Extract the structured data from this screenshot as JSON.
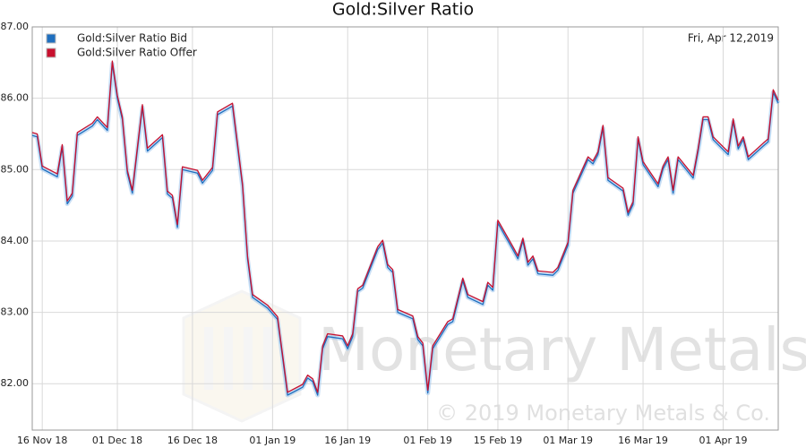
{
  "chart_data": {
    "type": "line",
    "title": "Gold:Silver Ratio",
    "annotation": "Fri, Apr 12,2019",
    "watermark": "Monetary Metals",
    "copyright": "© 2019 Monetary Metals & Co.",
    "x": [
      "2018-11-14",
      "2018-11-15",
      "2018-11-16",
      "2018-11-19",
      "2018-11-20",
      "2018-11-21",
      "2018-11-22",
      "2018-11-23",
      "2018-11-26",
      "2018-11-27",
      "2018-11-29",
      "2018-11-30",
      "2018-12-01",
      "2018-12-02",
      "2018-12-03",
      "2018-12-04",
      "2018-12-06",
      "2018-12-07",
      "2018-12-10",
      "2018-12-11",
      "2018-12-12",
      "2018-12-13",
      "2018-12-14",
      "2018-12-17",
      "2018-12-18",
      "2018-12-20",
      "2018-12-21",
      "2018-12-24",
      "2018-12-26",
      "2018-12-27",
      "2018-12-28",
      "2018-12-31",
      "2019-01-02",
      "2019-01-04",
      "2019-01-07",
      "2019-01-08",
      "2019-01-09",
      "2019-01-10",
      "2019-01-11",
      "2019-01-12",
      "2019-01-15",
      "2019-01-16",
      "2019-01-17",
      "2019-01-18",
      "2019-01-19",
      "2019-01-22",
      "2019-01-23",
      "2019-01-24",
      "2019-01-25",
      "2019-01-26",
      "2019-01-29",
      "2019-01-30",
      "2019-01-31",
      "2019-02-01",
      "2019-02-02",
      "2019-02-05",
      "2019-02-06",
      "2019-02-08",
      "2019-02-09",
      "2019-02-12",
      "2019-02-13",
      "2019-02-14",
      "2019-02-15",
      "2019-02-18",
      "2019-02-19",
      "2019-02-20",
      "2019-02-21",
      "2019-02-22",
      "2019-02-23",
      "2019-02-26",
      "2019-02-27",
      "2019-03-01",
      "2019-03-02",
      "2019-03-05",
      "2019-03-06",
      "2019-03-07",
      "2019-03-08",
      "2019-03-09",
      "2019-03-12",
      "2019-03-13",
      "2019-03-14",
      "2019-03-15",
      "2019-03-16",
      "2019-03-19",
      "2019-03-20",
      "2019-03-21",
      "2019-03-22",
      "2019-03-23",
      "2019-03-26",
      "2019-03-27",
      "2019-03-28",
      "2019-03-29",
      "2019-03-30",
      "2019-04-02",
      "2019-04-03",
      "2019-04-04",
      "2019-04-05",
      "2019-04-06",
      "2019-04-09",
      "2019-04-10",
      "2019-04-11",
      "2019-04-12"
    ],
    "series": [
      {
        "name": "Gold:Silver Ratio Bid",
        "color": "#1f6fbf",
        "values": [
          85.48,
          85.46,
          85.01,
          84.9,
          85.31,
          84.52,
          84.63,
          85.48,
          85.61,
          85.7,
          85.55,
          86.48,
          86.0,
          85.7,
          84.95,
          84.67,
          85.87,
          85.26,
          85.45,
          84.66,
          84.6,
          84.19,
          85.0,
          84.95,
          84.81,
          84.99,
          85.77,
          85.89,
          84.76,
          83.75,
          83.21,
          83.06,
          82.9,
          81.84,
          81.95,
          82.08,
          82.03,
          81.84,
          82.49,
          82.66,
          82.63,
          82.49,
          82.66,
          83.29,
          83.34,
          83.88,
          83.97,
          83.63,
          83.56,
          83.0,
          82.91,
          82.62,
          82.53,
          81.87,
          82.49,
          82.83,
          82.87,
          83.44,
          83.21,
          83.11,
          83.38,
          83.31,
          84.25,
          83.88,
          83.75,
          84.0,
          83.66,
          83.75,
          83.54,
          83.52,
          83.59,
          83.94,
          84.67,
          85.14,
          85.08,
          85.21,
          85.58,
          84.85,
          84.7,
          84.36,
          84.51,
          85.42,
          85.07,
          84.76,
          85.01,
          85.14,
          84.67,
          85.14,
          84.88,
          85.26,
          85.7,
          85.7,
          85.42,
          85.21,
          85.67,
          85.29,
          85.42,
          85.14,
          85.33,
          85.39,
          86.08,
          85.93
        ]
      },
      {
        "name": "Gold:Silver Ratio Offer",
        "color": "#c8102e",
        "values": [
          85.52,
          85.5,
          85.05,
          84.94,
          85.35,
          84.56,
          84.67,
          85.52,
          85.65,
          85.74,
          85.59,
          86.52,
          86.04,
          85.74,
          84.99,
          84.71,
          85.91,
          85.3,
          85.49,
          84.7,
          84.64,
          84.23,
          85.04,
          84.99,
          84.85,
          85.03,
          85.81,
          85.93,
          84.8,
          83.79,
          83.25,
          83.1,
          82.94,
          81.88,
          81.99,
          82.12,
          82.07,
          81.88,
          82.53,
          82.7,
          82.67,
          82.53,
          82.7,
          83.33,
          83.38,
          83.92,
          84.01,
          83.67,
          83.6,
          83.04,
          82.95,
          82.66,
          82.57,
          81.91,
          82.53,
          82.87,
          82.91,
          83.48,
          83.25,
          83.15,
          83.42,
          83.35,
          84.29,
          83.92,
          83.79,
          84.04,
          83.7,
          83.79,
          83.58,
          83.56,
          83.63,
          83.98,
          84.71,
          85.18,
          85.12,
          85.25,
          85.62,
          84.89,
          84.74,
          84.4,
          84.55,
          85.46,
          85.11,
          84.8,
          85.05,
          85.18,
          84.71,
          85.18,
          84.92,
          85.3,
          85.74,
          85.74,
          85.46,
          85.25,
          85.71,
          85.33,
          85.46,
          85.18,
          85.37,
          85.43,
          86.12,
          85.97
        ]
      }
    ],
    "xlim": [
      "2018-11-14",
      "2019-04-12"
    ],
    "xticks": [
      {
        "value": "2018-11-16",
        "label": "16 Nov 18"
      },
      {
        "value": "2018-12-01",
        "label": "01 Dec 18"
      },
      {
        "value": "2018-12-16",
        "label": "16 Dec 18"
      },
      {
        "value": "2019-01-01",
        "label": "01 Jan 19"
      },
      {
        "value": "2019-01-16",
        "label": "16 Jan 19"
      },
      {
        "value": "2019-02-01",
        "label": "01 Feb 19"
      },
      {
        "value": "2019-02-15",
        "label": "15 Feb 19"
      },
      {
        "value": "2019-03-01",
        "label": "01 Mar 19"
      },
      {
        "value": "2019-03-16",
        "label": "16 Mar 19"
      },
      {
        "value": "2019-04-01",
        "label": "01 Apr 19"
      }
    ],
    "ylim": [
      81.35,
      87.0
    ],
    "yticks": [
      {
        "value": 82,
        "label": "82.00"
      },
      {
        "value": 83,
        "label": "83.00"
      },
      {
        "value": 84,
        "label": "84.00"
      },
      {
        "value": 85,
        "label": "85.00"
      },
      {
        "value": 86,
        "label": "86.00"
      },
      {
        "value": 87,
        "label": "87.00"
      }
    ],
    "grid": true,
    "legend": "upper left"
  }
}
